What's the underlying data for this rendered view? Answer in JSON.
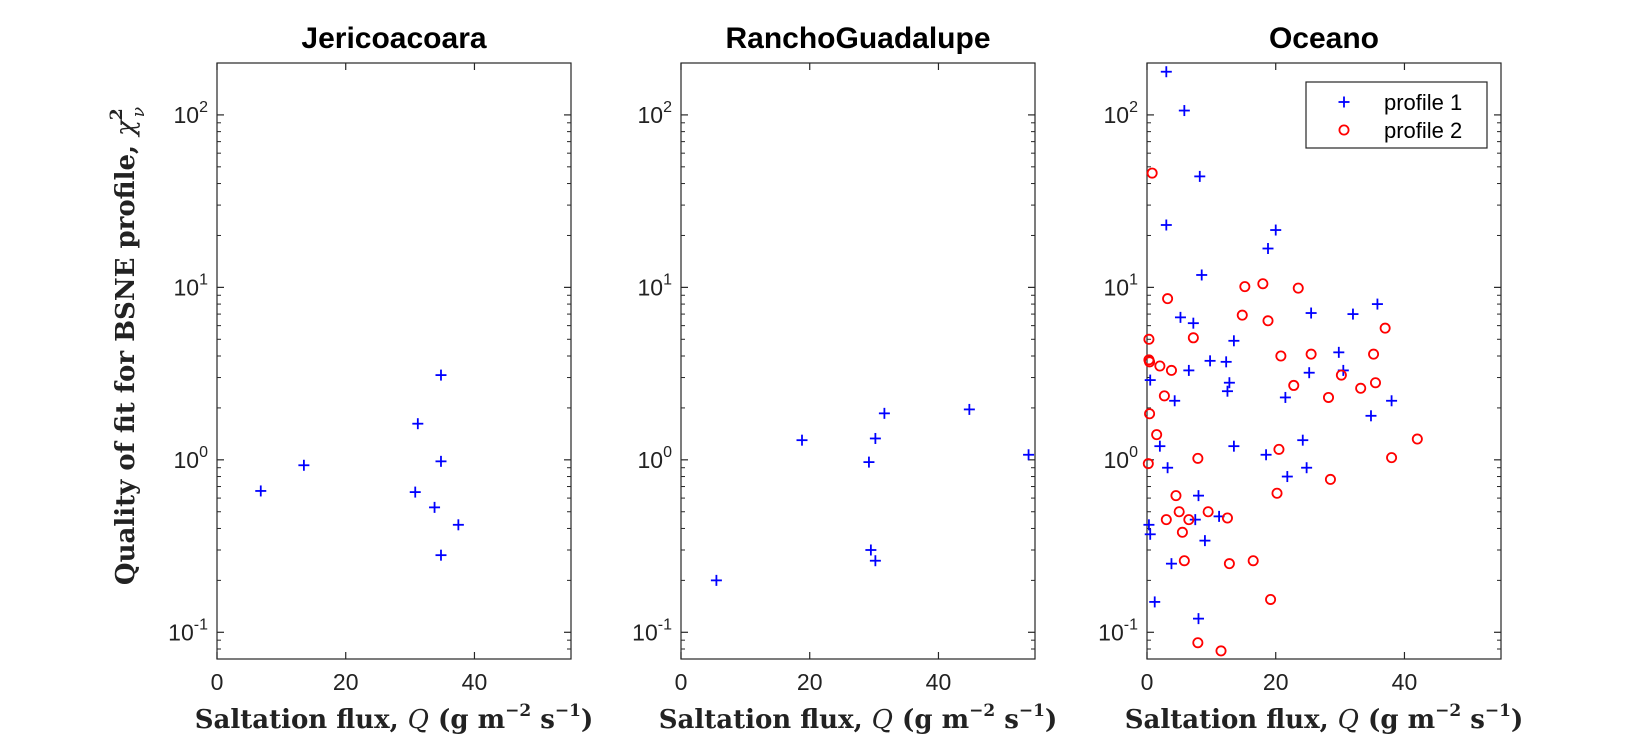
{
  "figure": {
    "ylabel": "Quality of fit for BSNE profile, χ²ν",
    "xlabel_parts": [
      "Saltation flux, ",
      "Q",
      " (g m",
      "−2",
      " s",
      "−1",
      ")"
    ]
  },
  "chart_data": [
    {
      "type": "scatter",
      "title": "Jericoacoara",
      "xlabel": "Saltation flux, Q (g m⁻² s⁻¹)",
      "ylabel": "Quality of fit for BSNE profile, χ²ν",
      "xlim": [
        0,
        55
      ],
      "ylim": [
        0.07,
        200
      ],
      "yscale": "log",
      "xticks": [
        "0",
        "20",
        "40"
      ],
      "yticks": [
        "10⁻¹",
        "10⁰",
        "10¹",
        "10²"
      ],
      "legend": false,
      "series": [
        {
          "name": "profile 1",
          "marker": "+",
          "color": "#0000ff",
          "points": [
            [
              6.8,
              0.66
            ],
            [
              13.5,
              0.93
            ],
            [
              31.2,
              1.62
            ],
            [
              34.8,
              3.1
            ],
            [
              34.8,
              0.98
            ],
            [
              30.8,
              0.65
            ],
            [
              33.8,
              0.53
            ],
            [
              37.5,
              0.42
            ],
            [
              34.8,
              0.28
            ]
          ]
        }
      ]
    },
    {
      "type": "scatter",
      "title": "RanchoGuadalupe",
      "xlabel": "Saltation flux, Q (g m⁻² s⁻¹)",
      "xlim": [
        0,
        55
      ],
      "ylim": [
        0.07,
        200
      ],
      "yscale": "log",
      "xticks": [
        "0",
        "20",
        "40"
      ],
      "yticks": [
        "10⁻¹",
        "10⁰",
        "10¹",
        "10²"
      ],
      "legend": false,
      "series": [
        {
          "name": "profile 1",
          "marker": "+",
          "color": "#0000ff",
          "points": [
            [
              5.5,
              0.2
            ],
            [
              18.8,
              1.3
            ],
            [
              29.2,
              0.97
            ],
            [
              30.2,
              1.33
            ],
            [
              31.6,
              1.86
            ],
            [
              29.5,
              0.3
            ],
            [
              30.2,
              0.26
            ],
            [
              44.8,
              1.96
            ],
            [
              54.0,
              1.07
            ]
          ]
        }
      ]
    },
    {
      "type": "scatter",
      "title": "Oceano",
      "xlabel": "Saltation flux, Q (g m⁻² s⁻¹)",
      "xlim": [
        0,
        55
      ],
      "ylim": [
        0.07,
        200
      ],
      "yscale": "log",
      "xticks": [
        "0",
        "20",
        "40"
      ],
      "yticks": [
        "10⁻¹",
        "10⁰",
        "10¹",
        "10²"
      ],
      "legend": true,
      "legend_position": "top-right",
      "series": [
        {
          "name": "profile 1",
          "marker": "+",
          "color": "#0000ff",
          "points": [
            [
              3.0,
              178
            ],
            [
              5.8,
              106
            ],
            [
              8.2,
              44
            ],
            [
              3.0,
              23
            ],
            [
              8.5,
              11.8
            ],
            [
              18.8,
              16.8
            ],
            [
              20.0,
              21.5
            ],
            [
              5.2,
              6.7
            ],
            [
              7.2,
              6.2
            ],
            [
              13.5,
              4.9
            ],
            [
              25.5,
              7.1
            ],
            [
              32.0,
              7.0
            ],
            [
              35.8,
              8.0
            ],
            [
              0.5,
              2.9
            ],
            [
              6.5,
              3.3
            ],
            [
              9.8,
              3.75
            ],
            [
              12.3,
              3.7
            ],
            [
              12.8,
              2.8
            ],
            [
              4.3,
              2.2
            ],
            [
              12.5,
              2.5
            ],
            [
              21.5,
              2.3
            ],
            [
              25.2,
              3.2
            ],
            [
              29.8,
              4.2
            ],
            [
              30.5,
              3.3
            ],
            [
              34.8,
              1.8
            ],
            [
              38.0,
              2.2
            ],
            [
              2.0,
              1.2
            ],
            [
              3.2,
              0.9
            ],
            [
              13.5,
              1.2
            ],
            [
              18.5,
              1.07
            ],
            [
              21.8,
              0.8
            ],
            [
              24.2,
              1.3
            ],
            [
              24.8,
              0.9
            ],
            [
              8.0,
              0.62
            ],
            [
              7.5,
              0.45
            ],
            [
              9.0,
              0.34
            ],
            [
              11.2,
              0.47
            ],
            [
              0.3,
              0.42
            ],
            [
              0.5,
              0.37
            ],
            [
              3.8,
              0.25
            ],
            [
              1.2,
              0.15
            ],
            [
              8.0,
              0.12
            ]
          ]
        },
        {
          "name": "profile 2",
          "marker": "o",
          "color": "#ff0000",
          "points": [
            [
              0.8,
              46
            ],
            [
              3.2,
              8.6
            ],
            [
              15.2,
              10.1
            ],
            [
              18.0,
              10.5
            ],
            [
              23.5,
              9.9
            ],
            [
              0.3,
              5.0
            ],
            [
              0.3,
              3.8
            ],
            [
              0.4,
              3.7
            ],
            [
              2.0,
              3.5
            ],
            [
              3.8,
              3.3
            ],
            [
              7.2,
              5.1
            ],
            [
              14.8,
              6.9
            ],
            [
              18.8,
              6.4
            ],
            [
              20.8,
              4.0
            ],
            [
              22.8,
              2.7
            ],
            [
              25.5,
              4.1
            ],
            [
              28.2,
              2.3
            ],
            [
              30.2,
              3.1
            ],
            [
              33.2,
              2.6
            ],
            [
              35.5,
              2.8
            ],
            [
              35.2,
              4.1
            ],
            [
              37.0,
              5.8
            ],
            [
              0.4,
              1.85
            ],
            [
              2.7,
              2.35
            ],
            [
              1.5,
              1.4
            ],
            [
              0.2,
              0.95
            ],
            [
              7.9,
              1.02
            ],
            [
              20.5,
              1.15
            ],
            [
              28.5,
              0.77
            ],
            [
              38.0,
              1.03
            ],
            [
              42.0,
              1.32
            ],
            [
              4.5,
              0.62
            ],
            [
              5.0,
              0.5
            ],
            [
              6.5,
              0.45
            ],
            [
              9.5,
              0.5
            ],
            [
              5.5,
              0.38
            ],
            [
              3.0,
              0.45
            ],
            [
              12.5,
              0.46
            ],
            [
              20.2,
              0.64
            ],
            [
              5.8,
              0.26
            ],
            [
              12.8,
              0.25
            ],
            [
              16.5,
              0.26
            ],
            [
              19.2,
              0.155
            ],
            [
              7.9,
              0.087
            ],
            [
              11.5,
              0.078
            ]
          ]
        }
      ]
    }
  ]
}
